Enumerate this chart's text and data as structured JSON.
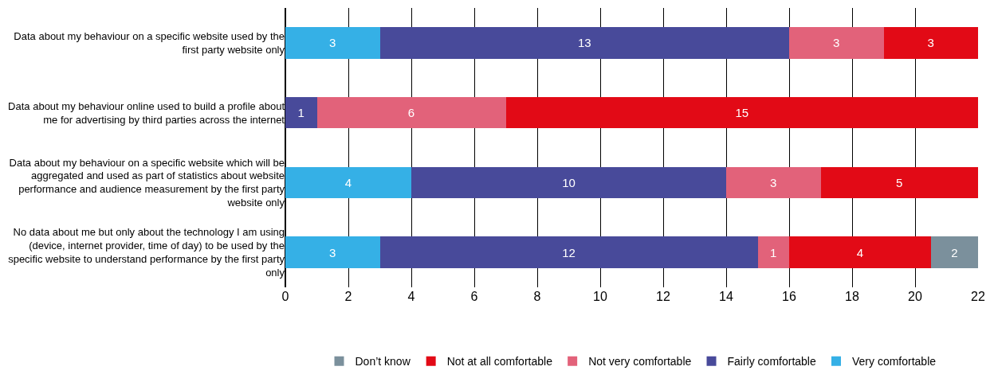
{
  "chart_data": {
    "type": "bar",
    "orientation": "horizontal",
    "stacked": true,
    "categories": [
      "Data about my behaviour on a specific website used by the first party website only",
      "Data about my behaviour online used to build a profile about me for advertising by third parties across the internet",
      "Data about my behaviour on a specific website which will be aggregated and used as part of statistics about website performance and audience measurement by the first party website only",
      "No data about me but only about the technology I am using (device, internet provider, time of day) to be used by the specific website to understand performance by the first party only"
    ],
    "series": [
      {
        "name": "Very comfortable",
        "color": "#35b0e6",
        "values": [
          3,
          null,
          4,
          3
        ],
        "value_labels": [
          "3",
          null,
          "4",
          "3"
        ]
      },
      {
        "name": "Fairly comfortable",
        "color": "#484a9a",
        "values": [
          13,
          1,
          10,
          12
        ],
        "value_labels": [
          "13",
          "1",
          "10",
          "12"
        ]
      },
      {
        "name": "Not very comfortable",
        "color": "#e2627a",
        "values": [
          3,
          6,
          3,
          1
        ],
        "value_labels": [
          "3",
          "6",
          "3",
          "1"
        ]
      },
      {
        "name": "Not at all comfortable",
        "color": "#e20a16",
        "values": [
          3,
          15,
          5,
          4.5
        ],
        "value_labels": [
          "3",
          "15",
          "5",
          "4"
        ]
      },
      {
        "name": "Don’t know",
        "color": "#7b909c",
        "values": [
          null,
          null,
          null,
          1.5
        ],
        "value_labels": [
          null,
          null,
          null,
          "2"
        ]
      }
    ],
    "xlim": [
      0,
      22
    ],
    "xticks": [
      0,
      2,
      4,
      6,
      8,
      10,
      12,
      14,
      16,
      18,
      20,
      22
    ],
    "grid": "x",
    "legend": "bottom"
  }
}
